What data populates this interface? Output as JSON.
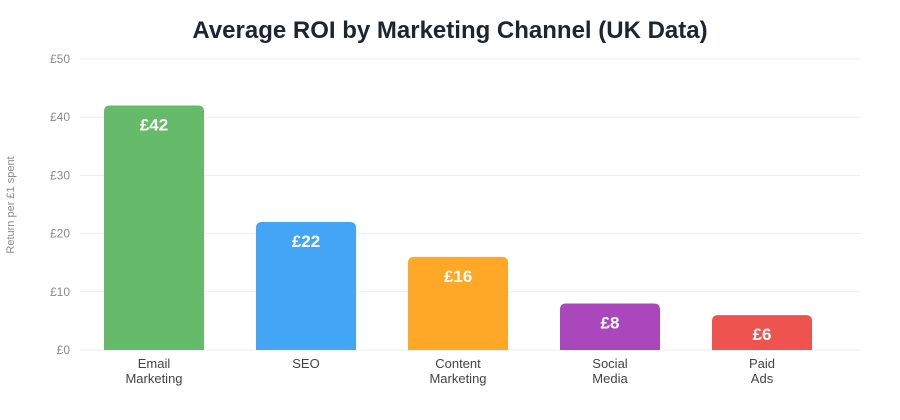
{
  "chart_data": {
    "type": "bar",
    "title": "Average ROI by Marketing Channel (UK Data)",
    "xlabel": "",
    "ylabel": "Return per £1 spent",
    "ylim": [
      0,
      50
    ],
    "y_ticks": [
      0,
      10,
      20,
      30,
      40,
      50
    ],
    "y_tick_labels": [
      "£0",
      "£10",
      "£20",
      "£30",
      "£40",
      "£50"
    ],
    "categories": [
      [
        "Email",
        "Marketing"
      ],
      [
        "SEO"
      ],
      [
        "Content",
        "Marketing"
      ],
      [
        "Social",
        "Media"
      ],
      [
        "Paid",
        "Ads"
      ]
    ],
    "values": [
      42,
      22,
      16,
      8,
      6
    ],
    "data_labels": [
      "£42",
      "£22",
      "£16",
      "£8",
      "£6"
    ],
    "colors": [
      "#66bb6a",
      "#42a5f5",
      "#ffa726",
      "#ab47bc",
      "#ef5350"
    ],
    "grid": true,
    "legend": "none"
  }
}
